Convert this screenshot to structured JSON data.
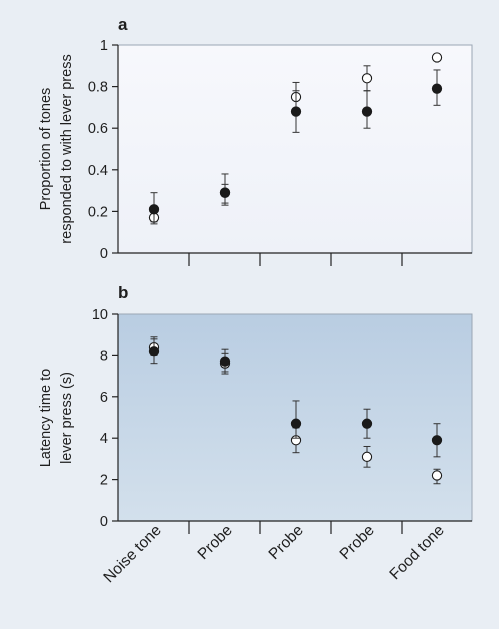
{
  "figure": {
    "background": "#e9eef4"
  },
  "chart_data": [
    {
      "type": "scatter",
      "panel_label": "a",
      "title": "",
      "ylabel": "Proportion of tones responded to with lever press",
      "ylabel_lines": [
        "Proportion of tones",
        "responded to with lever press"
      ],
      "xlabel": "",
      "ylim": [
        0,
        1
      ],
      "yticks": [
        0,
        0.2,
        0.4,
        0.6,
        0.8,
        1
      ],
      "ytick_labels": [
        "0",
        "0.2",
        "0.4",
        "0.6",
        "0.8",
        "1"
      ],
      "categories": [
        "Noise tone",
        "Probe",
        "Probe",
        "Probe",
        "Food tone"
      ],
      "grid": false,
      "plot_background": "#f5f6fb",
      "series": [
        {
          "marker": "filled",
          "color": "#1a1a1a",
          "values": [
            0.21,
            0.29,
            0.68,
            0.68,
            0.79
          ],
          "err_low": [
            0.15,
            0.24,
            0.58,
            0.6,
            0.71
          ],
          "err_high": [
            0.29,
            0.38,
            0.78,
            0.78,
            0.88
          ]
        },
        {
          "marker": "open",
          "color": "#ffffff",
          "values": [
            0.17,
            0.29,
            0.75,
            0.84,
            0.94
          ],
          "err_low": [
            0.14,
            0.23,
            0.69,
            0.78,
            null
          ],
          "err_high": [
            0.21,
            0.33,
            0.82,
            0.9,
            null
          ]
        }
      ]
    },
    {
      "type": "scatter",
      "panel_label": "b",
      "title": "",
      "ylabel": "Latency time to lever press (s)",
      "ylabel_lines": [
        "Latency time to",
        "lever press (s)"
      ],
      "xlabel": "",
      "ylim": [
        0,
        10
      ],
      "yticks": [
        0,
        2,
        4,
        6,
        8,
        10
      ],
      "ytick_labels": [
        "0",
        "2",
        "4",
        "6",
        "8",
        "10"
      ],
      "categories": [
        "Noise tone",
        "Probe",
        "Probe",
        "Probe",
        "Food tone"
      ],
      "grid": false,
      "plot_background": "#c5d6e6",
      "series": [
        {
          "marker": "filled",
          "color": "#1a1a1a",
          "values": [
            8.2,
            7.7,
            4.7,
            4.7,
            3.9
          ],
          "err_low": [
            7.6,
            7.2,
            4.0,
            4.0,
            3.1
          ],
          "err_high": [
            8.8,
            8.3,
            5.8,
            5.4,
            4.7
          ]
        },
        {
          "marker": "open",
          "color": "#ffffff",
          "values": [
            8.4,
            7.6,
            3.9,
            3.1,
            2.2
          ],
          "err_low": [
            8.0,
            7.1,
            3.3,
            2.6,
            1.8
          ],
          "err_high": [
            8.9,
            8.1,
            4.5,
            3.6,
            2.5
          ]
        }
      ]
    }
  ]
}
